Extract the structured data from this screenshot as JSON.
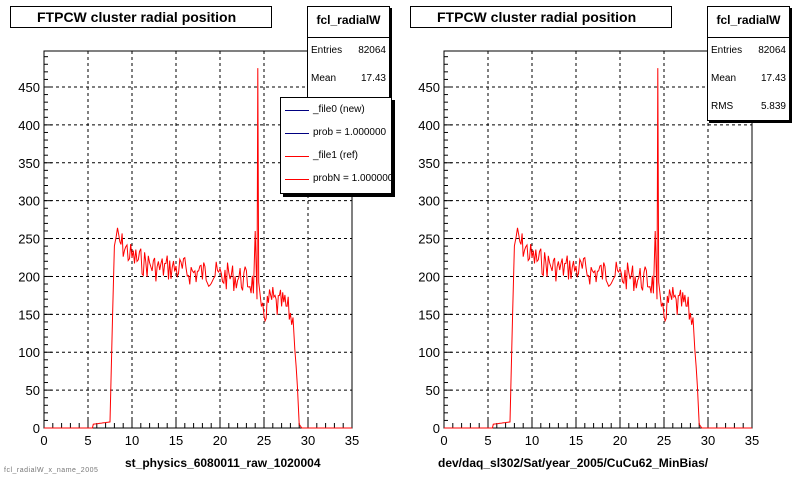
{
  "pads": [
    {
      "title": "FTPCW cluster radial position",
      "xlabel": "st_physics_6080011_raw_1020004",
      "stats": {
        "name": "fcl_radialW",
        "rows": [
          {
            "key": "Entries",
            "value": "82064"
          },
          {
            "key": "Mean",
            "value": "17.43"
          }
        ]
      },
      "legend": [
        {
          "label": "_file0 (new)",
          "color": "#000080"
        },
        {
          "label": "prob = 1.000000",
          "color": "#000080"
        },
        {
          "label": "_file1 (ref)",
          "color": "#ff0000"
        },
        {
          "label": "probN = 1.000000",
          "color": "#ff0000"
        }
      ]
    },
    {
      "title": "FTPCW cluster radial position",
      "xlabel": "dev/daq_sl302/Sat/year_2005/CuCu62_MinBias/",
      "stats": {
        "name": "fcl_radialW",
        "rows": [
          {
            "key": "Entries",
            "value": "82064"
          },
          {
            "key": "Mean",
            "value": "17.43"
          },
          {
            "key": "RMS",
            "value": "5.839"
          }
        ]
      }
    }
  ],
  "footer": "fcl_radialW_x_name_2005",
  "chart_data": [
    {
      "type": "line",
      "title": "FTPCW cluster radial position",
      "xlabel": "st_physics_6080011_raw_1020004",
      "ylabel": "",
      "xlim": [
        0,
        35
      ],
      "ylim": [
        0,
        500
      ],
      "xticks": [
        0,
        5,
        10,
        15,
        20,
        25,
        30,
        35
      ],
      "yticks": [
        0,
        50,
        100,
        150,
        200,
        250,
        300,
        350,
        400,
        450
      ],
      "grid": true,
      "legend_position": "top-right",
      "series": [
        {
          "name": "_file1 (ref)",
          "color": "#ff0000",
          "x": [
            0,
            5.5,
            5.6,
            7.5,
            7.8,
            8.0,
            8.2,
            8.5,
            9,
            10,
            11,
            12,
            13,
            14,
            15,
            16,
            17,
            18,
            19,
            20,
            21,
            22,
            23,
            23.8,
            24.0,
            24.2,
            24.3,
            24.4,
            24.5,
            24.7,
            25,
            25.5,
            26,
            26.5,
            27,
            27.5,
            28,
            28.3,
            28.5,
            28.8,
            29.0,
            29.3,
            35
          ],
          "y": [
            0,
            0,
            5,
            8,
            150,
            240,
            255,
            245,
            240,
            225,
            220,
            215,
            210,
            212,
            210,
            208,
            205,
            205,
            204,
            200,
            200,
            198,
            195,
            190,
            260,
            170,
            475,
            180,
            165,
            145,
            150,
            165,
            170,
            160,
            165,
            160,
            150,
            140,
            120,
            60,
            5,
            0,
            0
          ]
        }
      ]
    },
    {
      "type": "line",
      "title": "FTPCW cluster radial position",
      "xlabel": "dev/daq_sl302/Sat/year_2005/CuCu62_MinBias/",
      "ylabel": "",
      "xlim": [
        0,
        35
      ],
      "ylim": [
        0,
        500
      ],
      "xticks": [
        0,
        5,
        10,
        15,
        20,
        25,
        30,
        35
      ],
      "yticks": [
        0,
        50,
        100,
        150,
        200,
        250,
        300,
        350,
        400,
        450
      ],
      "grid": true,
      "series": [
        {
          "name": "",
          "color": "#ff0000",
          "x": [
            0,
            5.5,
            5.6,
            7.5,
            7.8,
            8.0,
            8.2,
            8.5,
            9,
            10,
            11,
            12,
            13,
            14,
            15,
            16,
            17,
            18,
            19,
            20,
            21,
            22,
            23,
            23.8,
            24.0,
            24.2,
            24.3,
            24.4,
            24.5,
            24.7,
            25,
            25.5,
            26,
            26.5,
            27,
            27.5,
            28,
            28.3,
            28.5,
            28.8,
            29.0,
            29.3,
            35
          ],
          "y": [
            0,
            0,
            5,
            8,
            150,
            240,
            255,
            245,
            240,
            225,
            220,
            215,
            210,
            212,
            210,
            208,
            205,
            205,
            204,
            200,
            200,
            198,
            195,
            190,
            260,
            170,
            475,
            180,
            165,
            145,
            150,
            165,
            170,
            160,
            165,
            160,
            150,
            140,
            120,
            60,
            5,
            0,
            0
          ]
        }
      ]
    }
  ]
}
